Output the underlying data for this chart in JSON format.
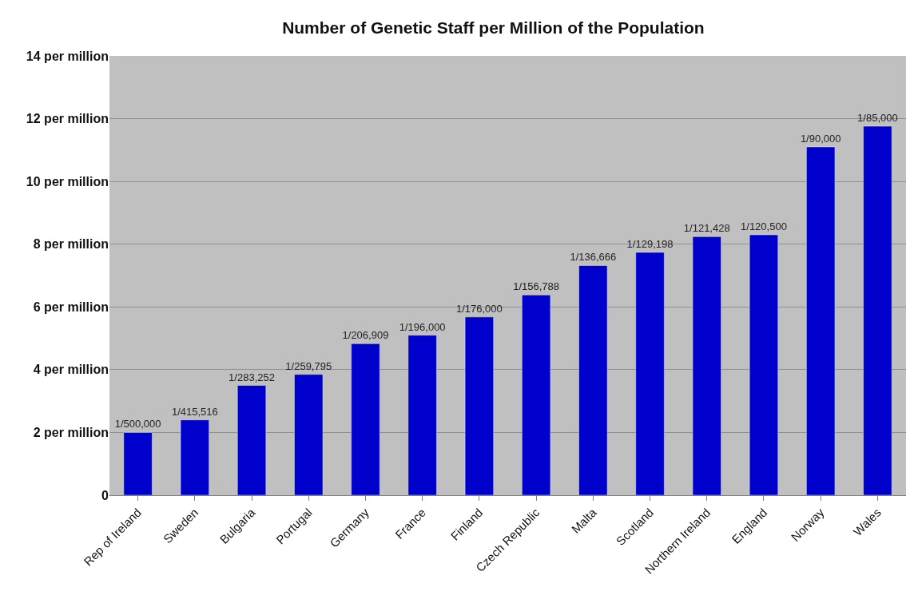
{
  "chart_data": {
    "type": "bar",
    "title": "Number of Genetic Staff per Million of the Population",
    "categories": [
      "Rep of Ireland",
      "Sweden",
      "Bulgaria",
      "Portugal",
      "Germany",
      "France",
      "Finland",
      "Czech Republic",
      "Malta",
      "Scotland",
      "Northern Ireland",
      "England",
      "Norway",
      "Wales"
    ],
    "values": [
      2.0,
      2.4,
      3.5,
      3.85,
      4.83,
      5.1,
      5.68,
      6.38,
      7.32,
      7.74,
      8.24,
      8.3,
      11.1,
      11.76
    ],
    "value_labels": [
      "1/500,000",
      "1/415,516",
      "1/283,252",
      "1/259,795",
      "1/206,909",
      "1/196,000",
      "1/176,000",
      "1/156,788",
      "1/136,666",
      "1/129,198",
      "1/121,428",
      "1/120,500",
      "1/90,000",
      "1/85,000"
    ],
    "color": "#0000cc",
    "ylim": [
      0,
      14
    ],
    "yticks": [
      0,
      {
        "value": 2,
        "label": "2 per million"
      },
      {
        "value": 4,
        "label": "4 per million"
      },
      {
        "value": 6,
        "label": "6 per million"
      },
      {
        "value": 8,
        "label": "8 per million"
      },
      {
        "value": 10,
        "label": "10 per million"
      },
      {
        "value": 12,
        "label": "12 per million"
      },
      {
        "value": 14,
        "label": "14 per million"
      }
    ],
    "grid": "y"
  }
}
